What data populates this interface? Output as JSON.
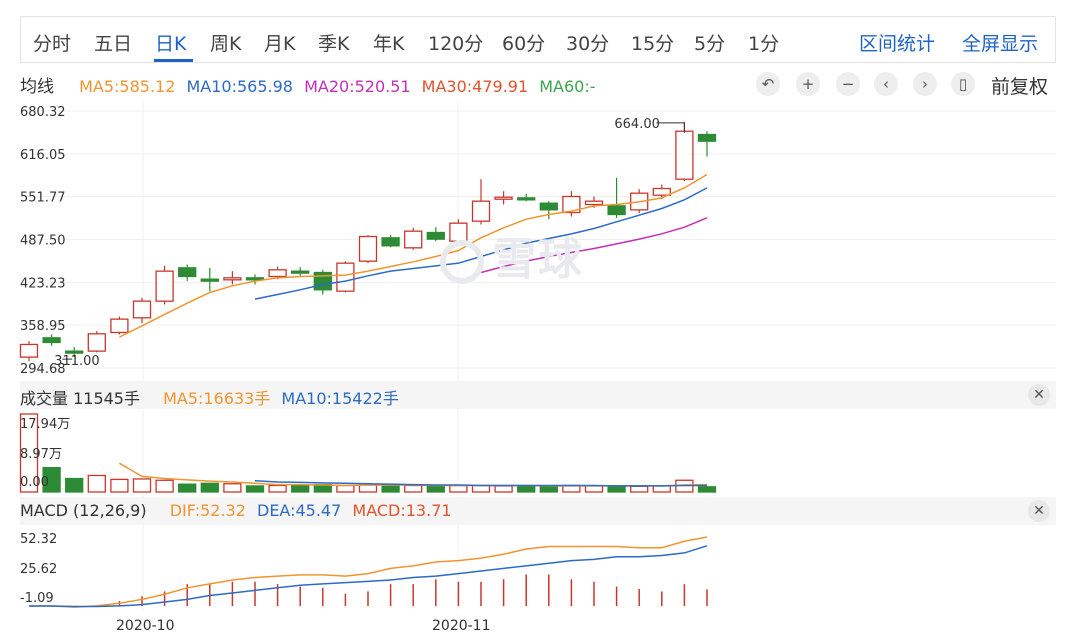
{
  "tabs": [
    {
      "label": "分时",
      "active": false
    },
    {
      "label": "五日",
      "active": false
    },
    {
      "label": "日K",
      "active": true
    },
    {
      "label": "周K",
      "active": false
    },
    {
      "label": "月K",
      "active": false
    },
    {
      "label": "季K",
      "active": false
    },
    {
      "label": "年K",
      "active": false
    },
    {
      "label": "120分",
      "active": false
    },
    {
      "label": "60分",
      "active": false
    },
    {
      "label": "30分",
      "active": false
    },
    {
      "label": "15分",
      "active": false
    },
    {
      "label": "5分",
      "active": false
    },
    {
      "label": "1分",
      "active": false
    }
  ],
  "tab_actions": {
    "interval_stats": "区间统计",
    "fullscreen": "全屏显示"
  },
  "ma_header": {
    "title": "均线",
    "ma5": "MA5:585.12",
    "ma10": "MA10:565.98",
    "ma20": "MA20:520.51",
    "ma30": "MA30:479.91",
    "ma60": "MA60:-"
  },
  "toolbar": {
    "adjust_label": "前复权",
    "buttons": [
      "undo-icon",
      "zoom-in-icon",
      "zoom-out-icon",
      "chevron-left-icon",
      "chevron-right-icon",
      "candlestick-icon"
    ]
  },
  "volume_header": {
    "title": "成交量 11545手",
    "ma5": "MA5:16633手",
    "ma10": "MA10:15422手"
  },
  "macd_header": {
    "title": "MACD (12,26,9)",
    "dif": "DIF:52.32",
    "dea": "DEA:45.47",
    "macd": "MACD:13.71"
  },
  "watermark": "雪球",
  "colors": {
    "up": "#c8372d",
    "down": "#2e8b35",
    "accent": "#1f63c9",
    "ma5": "#f0952f",
    "ma10": "#2d6bc6",
    "ma20": "#c131b8",
    "ma30": "#e0542d",
    "ma60": "#3aa64e"
  },
  "chart_data": {
    "type": "candlestick",
    "price_ticks": [
      "680.32",
      "616.05",
      "551.77",
      "487.50",
      "423.23",
      "358.95",
      "294.68"
    ],
    "low_marker": "311.00",
    "high_marker": "664.00",
    "date_labels": [
      "2020-10",
      "2020-11"
    ],
    "candles": [
      {
        "o": 311,
        "c": 330,
        "h": 335,
        "l": 305
      },
      {
        "o": 340,
        "c": 333,
        "h": 345,
        "l": 328
      },
      {
        "o": 320,
        "c": 318,
        "h": 326,
        "l": 311
      },
      {
        "o": 320,
        "c": 346,
        "h": 350,
        "l": 318
      },
      {
        "o": 348,
        "c": 368,
        "h": 372,
        "l": 345
      },
      {
        "o": 370,
        "c": 395,
        "h": 400,
        "l": 362
      },
      {
        "o": 395,
        "c": 440,
        "h": 448,
        "l": 390
      },
      {
        "o": 445,
        "c": 432,
        "h": 450,
        "l": 425
      },
      {
        "o": 428,
        "c": 426,
        "h": 445,
        "l": 410
      },
      {
        "o": 427,
        "c": 430,
        "h": 440,
        "l": 420
      },
      {
        "o": 430,
        "c": 428,
        "h": 435,
        "l": 420
      },
      {
        "o": 432,
        "c": 442,
        "h": 447,
        "l": 428
      },
      {
        "o": 440,
        "c": 438,
        "h": 446,
        "l": 433
      },
      {
        "o": 438,
        "c": 412,
        "h": 442,
        "l": 405
      },
      {
        "o": 410,
        "c": 452,
        "h": 455,
        "l": 408
      },
      {
        "o": 455,
        "c": 492,
        "h": 494,
        "l": 452
      },
      {
        "o": 490,
        "c": 478,
        "h": 494,
        "l": 476
      },
      {
        "o": 475,
        "c": 500,
        "h": 505,
        "l": 472
      },
      {
        "o": 498,
        "c": 488,
        "h": 506,
        "l": 485
      },
      {
        "o": 485,
        "c": 512,
        "h": 518,
        "l": 480
      },
      {
        "o": 515,
        "c": 545,
        "h": 578,
        "l": 510
      },
      {
        "o": 548,
        "c": 551,
        "h": 560,
        "l": 540
      },
      {
        "o": 550,
        "c": 548,
        "h": 556,
        "l": 545
      },
      {
        "o": 542,
        "c": 532,
        "h": 545,
        "l": 518
      },
      {
        "o": 528,
        "c": 552,
        "h": 560,
        "l": 522
      },
      {
        "o": 540,
        "c": 545,
        "h": 552,
        "l": 535
      },
      {
        "o": 538,
        "c": 525,
        "h": 580,
        "l": 520
      },
      {
        "o": 532,
        "c": 557,
        "h": 563,
        "l": 527
      },
      {
        "o": 554,
        "c": 564,
        "h": 570,
        "l": 548
      },
      {
        "o": 578,
        "c": 650,
        "h": 664,
        "l": 575
      },
      {
        "o": 645,
        "c": 635,
        "h": 650,
        "l": 612
      }
    ],
    "ma_lines": {
      "ma5": [
        null,
        null,
        null,
        null,
        341,
        358,
        375,
        392,
        408,
        418,
        425,
        430,
        432,
        433,
        434,
        440,
        447,
        454,
        462,
        471,
        490,
        505,
        518,
        525,
        530,
        538,
        540,
        544,
        550,
        565,
        585
      ],
      "ma10": [
        null,
        null,
        null,
        null,
        null,
        null,
        null,
        null,
        null,
        null,
        398,
        405,
        412,
        420,
        425,
        433,
        440,
        444,
        448,
        452,
        462,
        472,
        482,
        489,
        496,
        504,
        514,
        524,
        534,
        547,
        565
      ],
      "ma20": [
        null,
        null,
        null,
        null,
        null,
        null,
        null,
        null,
        null,
        null,
        null,
        null,
        null,
        null,
        null,
        null,
        null,
        null,
        null,
        null,
        438,
        447,
        455,
        462,
        468,
        474,
        481,
        488,
        496,
        506,
        520
      ]
    },
    "volume_ticks": [
      "17.94万",
      "8.97万",
      "0.00"
    ],
    "volumes": [
      17.94,
      5.6,
      3.1,
      3.8,
      2.9,
      3.0,
      2.7,
      1.8,
      2.0,
      1.9,
      1.4,
      1.5,
      1.6,
      1.7,
      1.5,
      1.6,
      1.6,
      1.5,
      1.5,
      1.5,
      1.5,
      1.4,
      1.4,
      1.4,
      1.5,
      1.4,
      1.4,
      1.3,
      1.4,
      2.7,
      1.2
    ],
    "vol_ma5": [
      null,
      null,
      null,
      null,
      6.6,
      3.6,
      3.1,
      2.8,
      2.5,
      2.3,
      2.0,
      1.7,
      1.7,
      1.6,
      1.5,
      1.6,
      1.6,
      1.6,
      1.5,
      1.5,
      1.5,
      1.5,
      1.5,
      1.4,
      1.4,
      1.4,
      1.4,
      1.4,
      1.4,
      1.6,
      1.7
    ],
    "vol_ma10": [
      null,
      null,
      null,
      null,
      null,
      null,
      null,
      null,
      null,
      null,
      2.6,
      2.3,
      2.2,
      2.1,
      2.0,
      1.9,
      1.8,
      1.7,
      1.6,
      1.6,
      1.5,
      1.5,
      1.5,
      1.5,
      1.5,
      1.5,
      1.4,
      1.4,
      1.4,
      1.5,
      1.5
    ],
    "macd_ticks": [
      "52.32",
      "25.62",
      "-1.09"
    ],
    "dif": [
      -1.09,
      -1.09,
      -2,
      -1,
      1,
      4,
      8,
      13,
      16,
      19,
      21,
      22,
      23,
      23,
      22,
      24,
      28,
      30,
      33,
      34,
      36,
      39,
      43,
      45,
      45,
      45,
      45,
      44,
      44,
      49,
      52.3
    ],
    "dea": [
      -1.09,
      -1.09,
      -1.5,
      -1.5,
      -1,
      0,
      2,
      4,
      7,
      9,
      11,
      13,
      15,
      16,
      17,
      18,
      19,
      21,
      22,
      24,
      26,
      28,
      30,
      32,
      34,
      35,
      37,
      37,
      38,
      40,
      45.5
    ],
    "macd_hist": [
      0,
      0,
      0,
      0,
      4,
      8,
      12,
      18,
      18,
      20,
      20,
      18,
      16,
      15,
      10,
      12,
      18,
      18,
      22,
      20,
      20,
      22,
      26,
      26,
      22,
      20,
      16,
      14,
      12,
      18,
      13.7
    ]
  }
}
